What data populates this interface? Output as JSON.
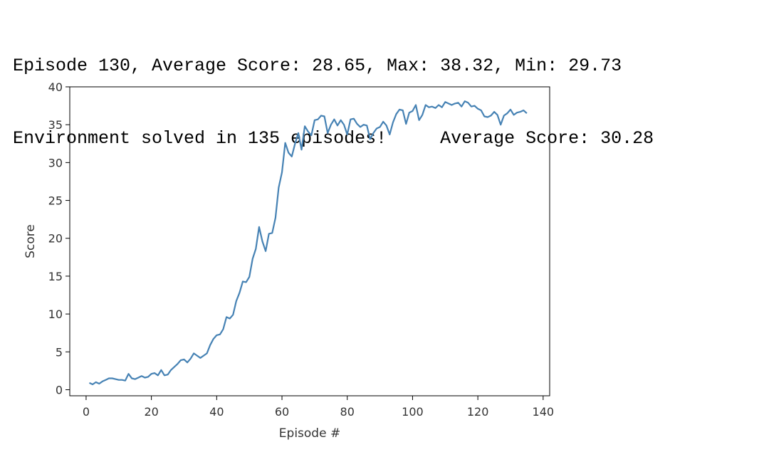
{
  "output": {
    "lines": [
      "Episode 130, Average Score: 28.65, Max: 38.32, Min: 29.73",
      "Environment solved in 135 episodes!     Average Score: 30.28"
    ]
  },
  "chart_data": {
    "type": "line",
    "title": "",
    "xlabel": "Episode #",
    "ylabel": "Score",
    "xlim": [
      -5,
      142
    ],
    "ylim": [
      -0.8,
      40
    ],
    "xticks": [
      0,
      20,
      40,
      60,
      80,
      100,
      120,
      140
    ],
    "yticks": [
      0,
      5,
      10,
      15,
      20,
      25,
      30,
      35,
      40
    ],
    "grid": false,
    "color": "#4682b4",
    "x": [
      1,
      2,
      3,
      4,
      5,
      6,
      7,
      8,
      9,
      10,
      11,
      12,
      13,
      14,
      15,
      16,
      17,
      18,
      19,
      20,
      21,
      22,
      23,
      24,
      25,
      26,
      27,
      28,
      29,
      30,
      31,
      32,
      33,
      34,
      35,
      36,
      37,
      38,
      39,
      40,
      41,
      42,
      43,
      44,
      45,
      46,
      47,
      48,
      49,
      50,
      51,
      52,
      53,
      54,
      55,
      56,
      57,
      58,
      59,
      60,
      61,
      62,
      63,
      64,
      65,
      66,
      67,
      68,
      69,
      70,
      71,
      72,
      73,
      74,
      75,
      76,
      77,
      78,
      79,
      80,
      81,
      82,
      83,
      84,
      85,
      86,
      87,
      88,
      89,
      90,
      91,
      92,
      93,
      94,
      95,
      96,
      97,
      98,
      99,
      100,
      101,
      102,
      103,
      104,
      105,
      106,
      107,
      108,
      109,
      110,
      111,
      112,
      113,
      114,
      115,
      116,
      117,
      118,
      119,
      120,
      121,
      122,
      123,
      124,
      125,
      126,
      127,
      128,
      129,
      130,
      131,
      132,
      133,
      134,
      135
    ],
    "y": [
      0.9,
      0.7,
      1.0,
      0.8,
      1.1,
      1.3,
      1.5,
      1.5,
      1.4,
      1.3,
      1.3,
      1.2,
      2.1,
      1.5,
      1.4,
      1.6,
      1.8,
      1.6,
      1.7,
      2.1,
      2.2,
      1.9,
      2.6,
      1.9,
      2.0,
      2.6,
      3.0,
      3.4,
      3.9,
      4.0,
      3.6,
      4.1,
      4.8,
      4.5,
      4.2,
      4.5,
      4.8,
      5.9,
      6.7,
      7.2,
      7.3,
      8.0,
      9.6,
      9.4,
      9.9,
      11.7,
      12.8,
      14.3,
      14.2,
      14.9,
      17.3,
      18.6,
      21.5,
      19.6,
      18.3,
      20.6,
      20.7,
      22.7,
      26.7,
      28.7,
      32.6,
      31.3,
      30.8,
      32.5,
      33.9,
      31.7,
      34.8,
      34.1,
      33.6,
      35.6,
      35.7,
      36.2,
      36.1,
      33.9,
      35.0,
      35.7,
      34.9,
      35.6,
      35.0,
      33.7,
      35.7,
      35.8,
      35.1,
      34.7,
      35.0,
      34.9,
      33.1,
      33.9,
      34.5,
      34.7,
      35.4,
      34.9,
      33.7,
      35.3,
      36.4,
      37.0,
      36.9,
      35.1,
      36.6,
      36.8,
      37.6,
      35.6,
      36.3,
      37.6,
      37.3,
      37.4,
      37.2,
      37.6,
      37.3,
      38.0,
      37.8,
      37.6,
      37.8,
      37.9,
      37.4,
      38.1,
      37.9,
      37.4,
      37.5,
      37.1,
      36.9,
      36.1,
      36.0,
      36.2,
      36.7,
      36.3,
      35.0,
      36.2,
      36.5,
      37.0,
      36.3,
      36.6,
      36.7,
      36.9,
      36.5
    ]
  }
}
